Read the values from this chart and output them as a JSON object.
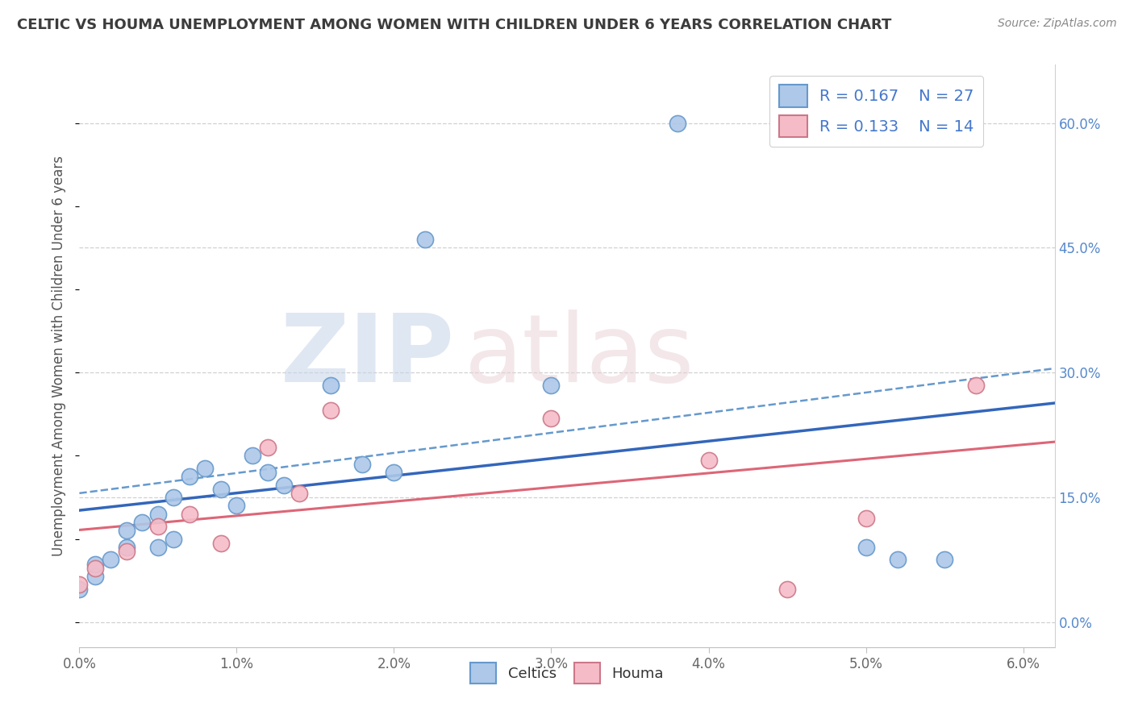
{
  "title": "CELTIC VS HOUMA UNEMPLOYMENT AMONG WOMEN WITH CHILDREN UNDER 6 YEARS CORRELATION CHART",
  "source": "Source: ZipAtlas.com",
  "ylabel": "Unemployment Among Women with Children Under 6 years",
  "xlim": [
    0.0,
    0.062
  ],
  "ylim": [
    -0.03,
    0.67
  ],
  "xticks": [
    0.0,
    0.01,
    0.02,
    0.03,
    0.04,
    0.05,
    0.06
  ],
  "xticklabels": [
    "0.0%",
    "1.0%",
    "2.0%",
    "3.0%",
    "4.0%",
    "5.0%",
    "6.0%"
  ],
  "yticks_right": [
    0.0,
    0.15,
    0.3,
    0.45,
    0.6
  ],
  "yticklabels_right": [
    "0.0%",
    "15.0%",
    "30.0%",
    "45.0%",
    "60.0%"
  ],
  "celtics_x": [
    0.0,
    0.001,
    0.001,
    0.002,
    0.003,
    0.003,
    0.004,
    0.005,
    0.005,
    0.006,
    0.006,
    0.007,
    0.008,
    0.009,
    0.01,
    0.011,
    0.012,
    0.013,
    0.016,
    0.018,
    0.02,
    0.022,
    0.03,
    0.038,
    0.05,
    0.052,
    0.055
  ],
  "celtics_y": [
    0.04,
    0.055,
    0.07,
    0.075,
    0.09,
    0.11,
    0.12,
    0.13,
    0.09,
    0.15,
    0.1,
    0.175,
    0.185,
    0.16,
    0.14,
    0.2,
    0.18,
    0.165,
    0.285,
    0.19,
    0.18,
    0.46,
    0.285,
    0.6,
    0.09,
    0.075,
    0.075
  ],
  "houma_x": [
    0.0,
    0.001,
    0.003,
    0.005,
    0.007,
    0.009,
    0.012,
    0.014,
    0.016,
    0.03,
    0.04,
    0.045,
    0.05,
    0.057
  ],
  "houma_y": [
    0.045,
    0.065,
    0.085,
    0.115,
    0.13,
    0.095,
    0.21,
    0.155,
    0.255,
    0.245,
    0.195,
    0.04,
    0.125,
    0.285
  ],
  "celtics_scatter_color": "#adc8e8",
  "celtics_edge_color": "#6699cc",
  "houma_scatter_color": "#f5bcc8",
  "houma_edge_color": "#cc7788",
  "celtics_solid_line_color": "#3366bb",
  "celtics_dashed_line_color": "#6699cc",
  "houma_solid_line_color": "#dd6677",
  "legend_R_celtics": "R = 0.167",
  "legend_N_celtics": "N = 27",
  "legend_R_houma": "R = 0.133",
  "legend_N_houma": "N = 14",
  "background_color": "#ffffff",
  "grid_color": "#d0d0d0",
  "title_color": "#3c3c3c",
  "source_color": "#888888",
  "ylabel_color": "#555555",
  "tick_label_color": "#666666",
  "right_tick_color": "#5588cc",
  "legend_text_color": "#4477cc"
}
